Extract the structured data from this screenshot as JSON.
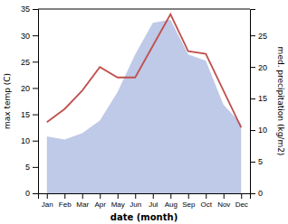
{
  "chart_data": {
    "type": "line",
    "categories": [
      "Jan",
      "Feb",
      "Mar",
      "Apr",
      "May",
      "Jun",
      "Jul",
      "Aug",
      "Sep",
      "Oct",
      "Nov",
      "Dec"
    ],
    "series": [
      {
        "type": "area",
        "axis": "y2",
        "color": "#bfc9e8",
        "values": [
          9.0,
          8.5,
          9.5,
          11.5,
          16.0,
          22.0,
          27.0,
          27.5,
          22.0,
          21.0,
          14.0,
          11.0
        ]
      },
      {
        "type": "line",
        "color": "#c0504d",
        "values": [
          13.5,
          16.0,
          19.5,
          24.0,
          22.0,
          22.0,
          28.0,
          34.0,
          27.0,
          26.5,
          19.5,
          12.5
        ]
      }
    ],
    "xlabel": "date (month)",
    "ylabel": "max temp (C)",
    "y2label": "med. precipitation (kg/m2)",
    "ylim": [
      0,
      35
    ],
    "yticks": [
      0,
      5,
      10,
      15,
      20,
      25,
      30,
      35
    ],
    "y2lim": [
      0,
      29.17
    ],
    "y2ticks": [
      0,
      5,
      10,
      15,
      20,
      25
    ],
    "grid": false
  }
}
